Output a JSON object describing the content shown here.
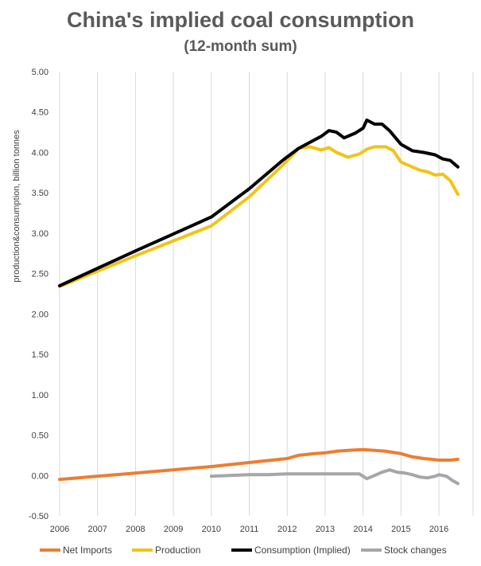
{
  "chart_data": {
    "type": "line",
    "title": "China's implied coal consumption",
    "subtitle": "(12-month sum)",
    "ylabel": "production&consumption, billion tonnes",
    "xlabel": "",
    "xlim": [
      2006,
      2016.9
    ],
    "ylim": [
      -0.5,
      5.0
    ],
    "yticks": [
      "5.00",
      "4.50",
      "4.00",
      "3.50",
      "3.00",
      "2.50",
      "2.00",
      "1.50",
      "1.00",
      "0.50",
      "0.00",
      "-0.50"
    ],
    "xticks": [
      "2006",
      "2007",
      "2008",
      "2009",
      "2010",
      "2011",
      "2012",
      "2013",
      "2014",
      "2015",
      "2016"
    ],
    "grid": "vertical",
    "legend_position": "bottom",
    "series": [
      {
        "name": "Net Imports",
        "color": "#ed7d31",
        "x": [
          2006,
          2008,
          2010,
          2011,
          2011.8,
          2012.0,
          2012.3,
          2012.7,
          2013.0,
          2013.3,
          2013.6,
          2014.0,
          2014.3,
          2014.6,
          2015.0,
          2015.3,
          2015.6,
          2016.0,
          2016.3,
          2016.5
        ],
        "y": [
          -0.05,
          0.03,
          0.11,
          0.16,
          0.2,
          0.21,
          0.25,
          0.27,
          0.28,
          0.3,
          0.31,
          0.32,
          0.31,
          0.3,
          0.27,
          0.23,
          0.21,
          0.19,
          0.19,
          0.2
        ]
      },
      {
        "name": "Production",
        "color": "#f2c318",
        "x": [
          2006,
          2008,
          2010,
          2011,
          2011.9,
          2012.3,
          2012.6,
          2012.9,
          2013.1,
          2013.3,
          2013.6,
          2013.9,
          2014.1,
          2014.3,
          2014.6,
          2014.8,
          2015.0,
          2015.2,
          2015.5,
          2015.7,
          2015.9,
          2016.1,
          2016.3,
          2016.5
        ],
        "y": [
          2.34,
          2.72,
          3.09,
          3.45,
          3.85,
          4.05,
          4.07,
          4.03,
          4.06,
          4.0,
          3.94,
          3.98,
          4.04,
          4.07,
          4.07,
          4.02,
          3.88,
          3.84,
          3.78,
          3.76,
          3.72,
          3.73,
          3.65,
          3.48
        ]
      },
      {
        "name": "Consumption (Implied)",
        "color": "#000000",
        "x": [
          2006,
          2008,
          2010,
          2011,
          2011.9,
          2012.3,
          2012.7,
          2012.9,
          2013.1,
          2013.3,
          2013.5,
          2013.8,
          2014.0,
          2014.1,
          2014.3,
          2014.5,
          2014.7,
          2015.0,
          2015.3,
          2015.6,
          2015.9,
          2016.1,
          2016.3,
          2016.5
        ],
        "y": [
          2.35,
          2.78,
          3.2,
          3.55,
          3.91,
          4.05,
          4.15,
          4.2,
          4.27,
          4.25,
          4.18,
          4.24,
          4.3,
          4.4,
          4.35,
          4.35,
          4.27,
          4.1,
          4.02,
          4.0,
          3.97,
          3.92,
          3.9,
          3.82
        ]
      },
      {
        "name": "Stock changes",
        "color": "#a6a6a6",
        "x": [
          2010,
          2010.5,
          2011,
          2011.5,
          2012.0,
          2012.5,
          2013.0,
          2013.5,
          2013.9,
          2014.1,
          2014.3,
          2014.5,
          2014.7,
          2014.9,
          2015.1,
          2015.3,
          2015.5,
          2015.7,
          2015.9,
          2016.0,
          2016.2,
          2016.35,
          2016.5
        ],
        "y": [
          -0.01,
          0.0,
          0.01,
          0.01,
          0.02,
          0.02,
          0.02,
          0.02,
          0.02,
          -0.04,
          0.0,
          0.04,
          0.07,
          0.04,
          0.03,
          0.01,
          -0.02,
          -0.03,
          -0.01,
          0.01,
          -0.01,
          -0.06,
          -0.1
        ]
      }
    ]
  }
}
